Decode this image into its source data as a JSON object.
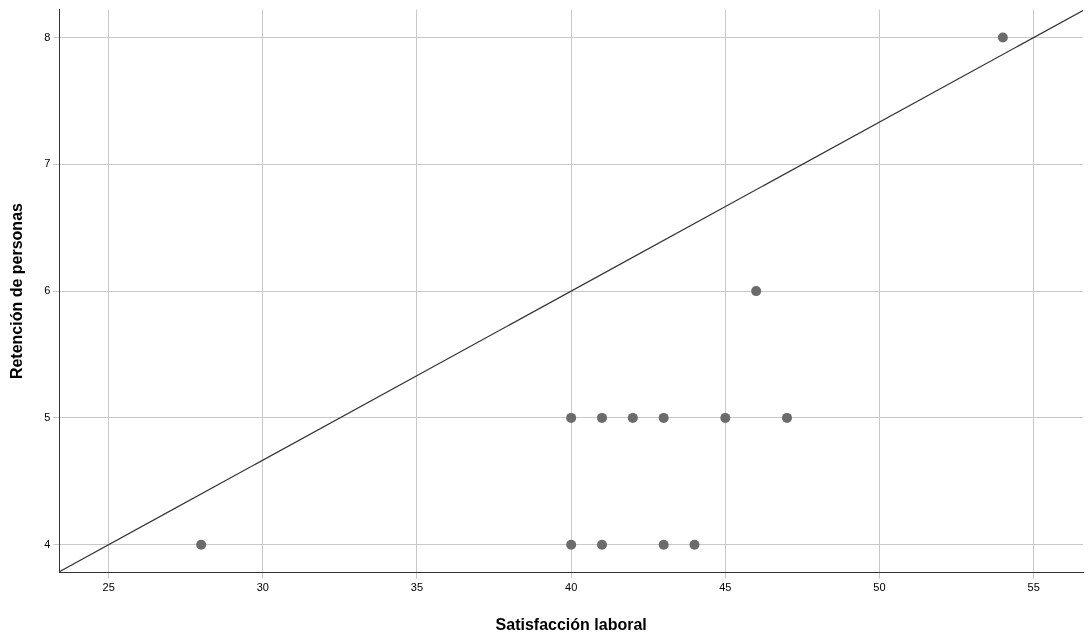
{
  "chart_data": {
    "type": "scatter",
    "xlabel": "Satisfacción laboral",
    "ylabel": "Retención de personas",
    "xlim": [
      23.4,
      56.6
    ],
    "ylim": [
      3.78,
      8.22
    ],
    "xticks": [
      25,
      30,
      35,
      40,
      45,
      50,
      55
    ],
    "yticks": [
      4,
      5,
      6,
      7,
      8
    ],
    "grid": true,
    "legend": false,
    "marker": "circle",
    "series": [
      {
        "type": "scatter",
        "color": "#6b6b6b",
        "x": [
          28,
          40,
          41,
          43,
          44,
          40,
          41,
          42,
          43,
          45,
          47,
          46,
          54
        ],
        "values": [
          4,
          4,
          4,
          4,
          4,
          5,
          5,
          5,
          5,
          5,
          5,
          6,
          8
        ]
      },
      {
        "type": "line",
        "color": "#333333",
        "x": [
          23.4,
          56.6
        ],
        "values": [
          3.787,
          8.213
        ],
        "marker": "none",
        "line_style": "solid"
      }
    ]
  }
}
